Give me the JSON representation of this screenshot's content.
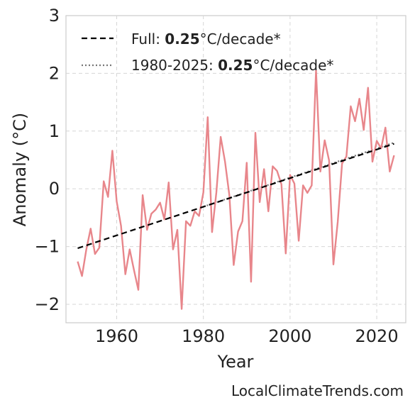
{
  "chart_data": {
    "type": "line",
    "ylabel": "Anomaly (°C)",
    "xlabel": "Year",
    "xlim": [
      1948.3,
      2026.7
    ],
    "ylim": [
      -2.32,
      3.0
    ],
    "xticks": [
      1960,
      1980,
      2000,
      2020
    ],
    "xtick_labels": [
      "1960",
      "1980",
      "2000",
      "2020"
    ],
    "yticks": [
      -2,
      -1,
      0,
      1,
      2,
      3
    ],
    "ytick_labels": [
      "−2",
      "−1",
      "0",
      "1",
      "2",
      "3"
    ],
    "grid": true,
    "legend_position": "top-left",
    "legend": [
      {
        "prefix": "Full: ",
        "value": "0.25",
        "suffix": "°C/decade*",
        "style": "dashed",
        "color": "#000000"
      },
      {
        "prefix": "1980-2025: ",
        "value": "0.25",
        "suffix": "°C/decade*",
        "style": "dotted",
        "color": "#777777"
      }
    ],
    "series": [
      {
        "color": "#e8868b",
        "x": [
          1951,
          1952,
          1953,
          1954,
          1955,
          1956,
          1957,
          1958,
          1959,
          1960,
          1961,
          1962,
          1963,
          1964,
          1965,
          1966,
          1967,
          1968,
          1969,
          1970,
          1971,
          1972,
          1973,
          1974,
          1975,
          1976,
          1977,
          1978,
          1979,
          1980,
          1981,
          1982,
          1983,
          1984,
          1985,
          1986,
          1987,
          1988,
          1989,
          1990,
          1991,
          1992,
          1993,
          1994,
          1995,
          1996,
          1997,
          1998,
          1999,
          2000,
          2001,
          2002,
          2003,
          2004,
          2005,
          2006,
          2007,
          2008,
          2009,
          2010,
          2011,
          2012,
          2013,
          2014,
          2015,
          2016,
          2017,
          2018,
          2019,
          2020,
          2021,
          2022,
          2023,
          2024
        ],
        "values": [
          -1.26,
          -1.51,
          -1.05,
          -0.69,
          -1.13,
          -1.02,
          0.13,
          -0.14,
          0.66,
          -0.22,
          -0.64,
          -1.48,
          -1.05,
          -1.41,
          -1.75,
          -0.11,
          -0.71,
          -0.43,
          -0.36,
          -0.24,
          -0.53,
          0.11,
          -1.05,
          -0.71,
          -2.08,
          -0.56,
          -0.64,
          -0.39,
          -0.47,
          -0.06,
          1.24,
          -0.75,
          -0.06,
          0.9,
          0.47,
          -0.11,
          -1.32,
          -0.74,
          -0.56,
          0.45,
          -1.61,
          0.97,
          -0.23,
          0.34,
          -0.39,
          0.39,
          0.31,
          0.08,
          -1.12,
          0.24,
          0.09,
          -0.9,
          0.06,
          -0.07,
          0.06,
          2.05,
          0.3,
          0.84,
          0.49,
          -1.31,
          -0.57,
          0.44,
          0.56,
          1.43,
          1.17,
          1.56,
          1.02,
          1.75,
          0.47,
          0.83,
          0.7,
          1.06,
          0.3,
          0.58
        ]
      }
    ],
    "trend_full": {
      "x": [
        1951,
        2024
      ],
      "y": [
        -1.03,
        0.78
      ]
    },
    "trend_recent": {
      "x": [
        1980,
        2024
      ],
      "y": [
        -0.31,
        0.8
      ]
    }
  },
  "watermark": "LocalClimateTrends.com"
}
